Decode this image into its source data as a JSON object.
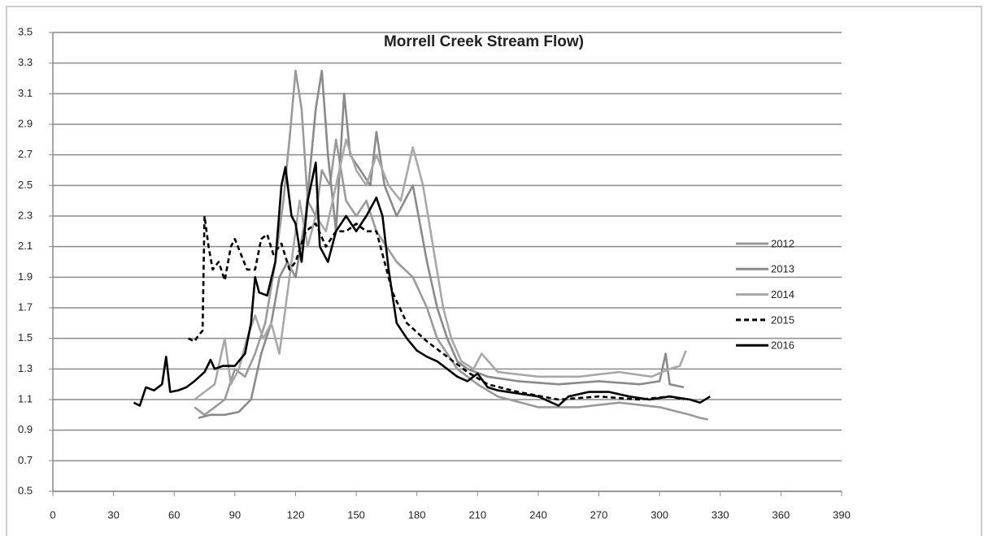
{
  "chart_data": {
    "type": "line",
    "title": "Morrell Creek Stream Flow)",
    "xlim": [
      0,
      390
    ],
    "xticks": [
      0,
      30,
      60,
      90,
      120,
      150,
      180,
      210,
      240,
      270,
      300,
      330,
      360,
      390
    ],
    "ylim": [
      0.5,
      3.5
    ],
    "yticks": [
      0.5,
      0.7,
      0.9,
      1.1,
      1.3,
      1.5,
      1.7,
      1.9,
      2.1,
      2.3,
      2.5,
      2.7,
      2.9,
      3.1,
      3.3,
      3.5
    ],
    "grid": true,
    "legend": "right",
    "series": [
      {
        "name": "2012",
        "color": "#9a9a9a",
        "line_style": "solid",
        "x": [
          70,
          75,
          80,
          85,
          90,
          95,
          100,
          105,
          110,
          114,
          117,
          120,
          123,
          126,
          130,
          133,
          137,
          140,
          145,
          150,
          155,
          160,
          165,
          170,
          178,
          185,
          190,
          195,
          200,
          210,
          220,
          240,
          260,
          280,
          300,
          315,
          320,
          324
        ],
        "values": [
          1.05,
          1.0,
          1.05,
          1.1,
          1.3,
          1.25,
          1.4,
          1.6,
          2.0,
          2.4,
          2.8,
          3.25,
          3.0,
          2.4,
          2.3,
          2.6,
          2.5,
          2.8,
          2.4,
          2.3,
          2.4,
          2.2,
          2.1,
          2.0,
          1.9,
          1.7,
          1.5,
          1.4,
          1.3,
          1.2,
          1.12,
          1.05,
          1.05,
          1.08,
          1.05,
          1.0,
          0.98,
          0.97
        ]
      },
      {
        "name": "2013",
        "color": "#8a8a8a",
        "line_style": "solid",
        "x": [
          72,
          78,
          85,
          92,
          98,
          103,
          108,
          112,
          116,
          120,
          125,
          130,
          133,
          136,
          140,
          144,
          147,
          152,
          157,
          160,
          164,
          170,
          178,
          185,
          190,
          195,
          200,
          205,
          215,
          230,
          250,
          270,
          290,
          300,
          303,
          305,
          312
        ],
        "values": [
          0.98,
          1.0,
          1.0,
          1.02,
          1.1,
          1.4,
          1.6,
          1.9,
          2.0,
          1.9,
          2.3,
          3.0,
          3.25,
          2.7,
          2.2,
          3.1,
          2.7,
          2.6,
          2.5,
          2.85,
          2.5,
          2.3,
          2.5,
          2.0,
          1.7,
          1.5,
          1.35,
          1.3,
          1.25,
          1.22,
          1.2,
          1.22,
          1.2,
          1.22,
          1.4,
          1.2,
          1.18
        ]
      },
      {
        "name": "2014",
        "color": "#a8a8a8",
        "line_style": "solid",
        "x": [
          70,
          75,
          80,
          85,
          88,
          92,
          96,
          100,
          104,
          108,
          112,
          117,
          122,
          126,
          130,
          135,
          140,
          145,
          150,
          155,
          160,
          166,
          172,
          178,
          183,
          188,
          193,
          197,
          202,
          208,
          212,
          220,
          240,
          260,
          280,
          296,
          305,
          310,
          313
        ],
        "values": [
          1.1,
          1.15,
          1.2,
          1.5,
          1.2,
          1.3,
          1.5,
          1.65,
          1.5,
          1.6,
          1.4,
          1.9,
          2.4,
          2.1,
          2.3,
          2.2,
          2.5,
          2.8,
          2.6,
          2.5,
          2.7,
          2.5,
          2.4,
          2.75,
          2.5,
          2.1,
          1.7,
          1.5,
          1.35,
          1.3,
          1.4,
          1.28,
          1.25,
          1.25,
          1.28,
          1.25,
          1.3,
          1.32,
          1.42
        ]
      },
      {
        "name": "2015",
        "color": "#000000",
        "line_style": "dashed",
        "x": [
          67,
          70,
          72,
          74,
          75,
          77,
          79,
          82,
          85,
          88,
          90,
          93,
          96,
          100,
          103,
          106,
          109,
          113,
          117,
          120,
          125,
          130,
          135,
          140,
          145,
          150,
          155,
          160,
          163,
          168,
          175,
          185,
          195,
          205,
          215,
          230,
          250,
          270,
          290,
          305,
          312
        ],
        "values": [
          1.5,
          1.48,
          1.52,
          1.55,
          2.3,
          2.1,
          1.95,
          2.0,
          1.88,
          2.1,
          2.15,
          2.05,
          1.95,
          1.95,
          2.15,
          2.18,
          2.05,
          2.12,
          1.95,
          2.0,
          2.2,
          2.25,
          2.1,
          2.2,
          2.2,
          2.25,
          2.2,
          2.2,
          2.05,
          1.8,
          1.6,
          1.48,
          1.38,
          1.28,
          1.2,
          1.15,
          1.1,
          1.12,
          1.1,
          1.12,
          1.1
        ]
      },
      {
        "name": "2016",
        "color": "#000000",
        "line_style": "solid",
        "x": [
          40,
          43,
          46,
          50,
          54,
          56,
          58,
          62,
          66,
          70,
          75,
          78,
          80,
          84,
          90,
          95,
          98,
          100,
          102,
          106,
          110,
          113,
          115,
          118,
          120,
          123,
          126,
          130,
          132,
          136,
          140,
          145,
          150,
          155,
          160,
          163,
          166,
          170,
          175,
          180,
          185,
          190,
          195,
          200,
          205,
          210,
          215,
          220,
          230,
          240,
          250,
          255,
          265,
          275,
          285,
          295,
          305,
          315,
          320,
          325
        ],
        "values": [
          1.08,
          1.06,
          1.18,
          1.16,
          1.2,
          1.38,
          1.15,
          1.16,
          1.18,
          1.22,
          1.28,
          1.36,
          1.3,
          1.32,
          1.32,
          1.4,
          1.6,
          1.9,
          1.8,
          1.78,
          2.0,
          2.5,
          2.62,
          2.3,
          2.25,
          2.0,
          2.4,
          2.65,
          2.1,
          2.0,
          2.2,
          2.3,
          2.2,
          2.3,
          2.42,
          2.3,
          1.95,
          1.6,
          1.5,
          1.42,
          1.38,
          1.35,
          1.3,
          1.25,
          1.22,
          1.27,
          1.18,
          1.16,
          1.14,
          1.12,
          1.06,
          1.12,
          1.15,
          1.15,
          1.12,
          1.1,
          1.12,
          1.1,
          1.08,
          1.12
        ]
      }
    ]
  }
}
